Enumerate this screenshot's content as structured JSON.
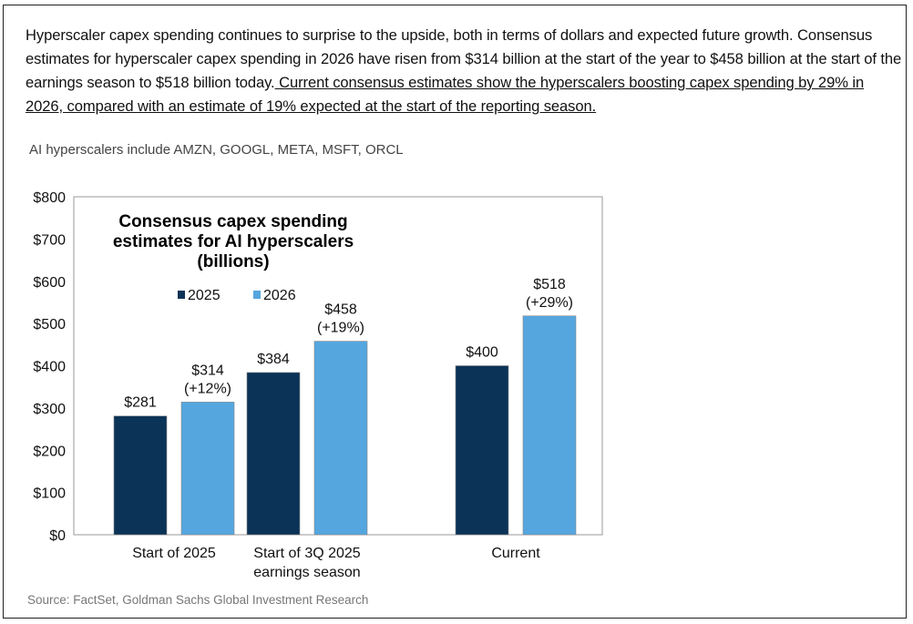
{
  "intro": {
    "text": "Hyperscaler capex spending continues to surprise to the upside, both in terms of dollars and expected future growth. Consensus estimates for hyperscaler capex spending in 2026 have risen from $314 billion at the start of the year to $458 billion at the start of the earnings season to $518 billion today.",
    "underlined": " Current consensus estimates show the hyperscalers boosting capex spending by 29% in 2026, compared with an estimate of 19% expected at the start of the reporting season."
  },
  "subtitle": "AI hyperscalers include AMZN, GOOGL, META, MSFT, ORCL",
  "source": "Source: FactSet, Goldman Sachs Global Investment Research",
  "chart_data": {
    "type": "bar",
    "title": [
      "Consensus capex spending",
      "estimates for AI hyperscalers",
      "(billions)"
    ],
    "categories": [
      [
        "Start of 2025"
      ],
      [
        "Start of 3Q 2025",
        "earnings season"
      ],
      [
        "Current"
      ]
    ],
    "series": [
      {
        "name": "2025",
        "color": "#0b3358",
        "values": [
          281,
          384,
          400
        ],
        "labels": [
          [
            "$281"
          ],
          [
            "$384"
          ],
          [
            "$400"
          ]
        ]
      },
      {
        "name": "2026",
        "color": "#55a6df",
        "values": [
          314,
          458,
          518
        ],
        "labels": [
          [
            "$314",
            "(+12%)"
          ],
          [
            "$458",
            "(+19%)"
          ],
          [
            "$518",
            "(+29%)"
          ]
        ]
      }
    ],
    "yticks": [
      "$0",
      "$100",
      "$200",
      "$300",
      "$400",
      "$500",
      "$600",
      "$700",
      "$800"
    ],
    "ylim": [
      0,
      800
    ],
    "xlabel": "",
    "ylabel": "",
    "legend": "top-left inside",
    "grid": false
  }
}
